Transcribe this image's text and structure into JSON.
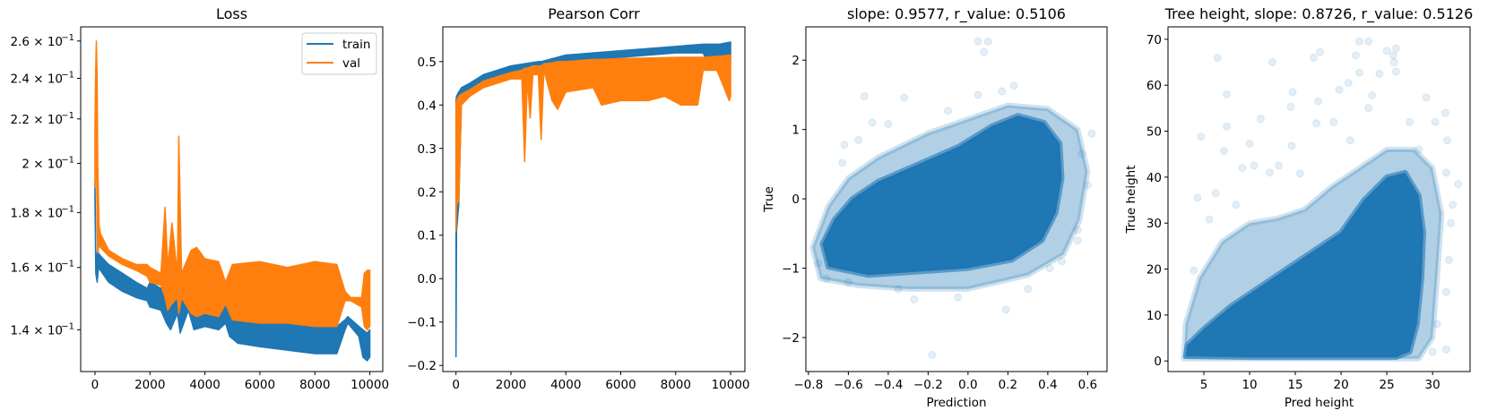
{
  "colors": {
    "train": "#1f77b4",
    "val": "#ff7f0e",
    "scatter": "#1f77b4"
  },
  "chart_data": [
    {
      "type": "line",
      "title": "Loss",
      "xlabel": "",
      "ylabel": "",
      "yscale": "log",
      "xlim": [
        -520,
        10470
      ],
      "ylim": [
        0.128,
        0.268
      ],
      "xticks": [
        0,
        2000,
        4000,
        6000,
        8000,
        10000
      ],
      "xticklabels": [
        "0",
        "2000",
        "4000",
        "6000",
        "8000",
        "10000"
      ],
      "yticks": [
        0.14,
        0.16,
        0.18,
        0.2,
        0.22,
        0.24,
        0.26
      ],
      "yticklabels": [
        [
          "1.4 × 10",
          "−1"
        ],
        [
          "1.6 × 10",
          "−1"
        ],
        [
          "1.8 × 10",
          "−1"
        ],
        [
          "2 × 10",
          "−1"
        ],
        [
          "2.2 × 10",
          "−1"
        ],
        [
          "2.4 × 10",
          "−1"
        ],
        [
          "2.6 × 10",
          "−1"
        ]
      ],
      "legend": {
        "position": "top-right",
        "entries": [
          "train",
          "val"
        ]
      },
      "series": [
        {
          "name": "train",
          "color_key": "train",
          "x": [
            0,
            30,
            80,
            100,
            130,
            200,
            500,
            1000,
            1500,
            1900,
            2000,
            2400,
            2600,
            2750,
            3000,
            3100,
            3400,
            3600,
            4000,
            4500,
            4750,
            4900,
            5200,
            6000,
            7000,
            8000,
            8800,
            9100,
            9200,
            9600,
            9750,
            9900,
            10000
          ],
          "low": [
            0.185,
            0.158,
            0.155,
            0.157,
            0.16,
            0.159,
            0.155,
            0.152,
            0.15,
            0.149,
            0.147,
            0.146,
            0.142,
            0.14,
            0.145,
            0.139,
            0.146,
            0.14,
            0.141,
            0.14,
            0.142,
            0.138,
            0.136,
            0.135,
            0.134,
            0.133,
            0.133,
            0.14,
            0.142,
            0.138,
            0.132,
            0.131,
            0.132
          ],
          "high": [
            0.193,
            0.165,
            0.165,
            0.166,
            0.165,
            0.164,
            0.161,
            0.158,
            0.155,
            0.153,
            0.155,
            0.153,
            0.155,
            0.152,
            0.153,
            0.152,
            0.152,
            0.15,
            0.15,
            0.146,
            0.15,
            0.145,
            0.143,
            0.143,
            0.142,
            0.142,
            0.141,
            0.143,
            0.144,
            0.141,
            0.14,
            0.139,
            0.14
          ]
        },
        {
          "name": "val",
          "color_key": "val",
          "x": [
            0,
            20,
            50,
            80,
            100,
            150,
            200,
            500,
            1000,
            1500,
            1900,
            2000,
            2400,
            2550,
            2650,
            2800,
            3000,
            3050,
            3150,
            3500,
            3700,
            4000,
            4500,
            4750,
            5000,
            6000,
            7000,
            8000,
            8800,
            9100,
            9300,
            9700,
            9800,
            9900,
            10000
          ],
          "low": [
            0.19,
            0.2,
            0.205,
            0.175,
            0.165,
            0.168,
            0.167,
            0.164,
            0.161,
            0.159,
            0.157,
            0.155,
            0.154,
            0.15,
            0.146,
            0.148,
            0.15,
            0.145,
            0.15,
            0.145,
            0.144,
            0.145,
            0.144,
            0.148,
            0.143,
            0.142,
            0.142,
            0.141,
            0.141,
            0.149,
            0.149,
            0.147,
            0.141,
            0.14,
            0.141
          ],
          "high": [
            0.215,
            0.24,
            0.26,
            0.24,
            0.2,
            0.175,
            0.172,
            0.166,
            0.163,
            0.161,
            0.161,
            0.16,
            0.158,
            0.182,
            0.16,
            0.176,
            0.158,
            0.212,
            0.158,
            0.166,
            0.167,
            0.163,
            0.162,
            0.155,
            0.161,
            0.162,
            0.16,
            0.162,
            0.161,
            0.152,
            0.15,
            0.15,
            0.158,
            0.159,
            0.159
          ]
        }
      ]
    },
    {
      "type": "line",
      "title": "Pearson Corr",
      "xlabel": "",
      "ylabel": "",
      "xlim": [
        -480,
        10520
      ],
      "ylim": [
        -0.214,
        0.58
      ],
      "xticks": [
        0,
        2000,
        4000,
        6000,
        8000,
        10000
      ],
      "xticklabels": [
        "0",
        "2000",
        "4000",
        "6000",
        "8000",
        "10000"
      ],
      "yticks": [
        -0.2,
        -0.1,
        0.0,
        0.1,
        0.2,
        0.3,
        0.4,
        0.5
      ],
      "yticklabels": [
        "−0.2",
        "−0.1",
        "0.0",
        "0.1",
        "0.2",
        "0.3",
        "0.4",
        "0.5"
      ],
      "series": [
        {
          "name": "train",
          "color_key": "train",
          "x": [
            0,
            20,
            100,
            200,
            500,
            1000,
            2000,
            3000,
            3100,
            4000,
            6000,
            8000,
            9000,
            9200,
            9600,
            10000
          ],
          "low": [
            -0.18,
            0.11,
            0.17,
            0.42,
            0.43,
            0.45,
            0.47,
            0.48,
            0.48,
            0.5,
            0.51,
            0.52,
            0.52,
            0.49,
            0.49,
            0.5
          ],
          "high": [
            0.41,
            0.42,
            0.43,
            0.44,
            0.45,
            0.47,
            0.49,
            0.5,
            0.5,
            0.515,
            0.525,
            0.535,
            0.54,
            0.54,
            0.54,
            0.545
          ]
        },
        {
          "name": "val",
          "color_key": "val",
          "x": [
            0,
            20,
            100,
            200,
            500,
            1000,
            2000,
            2400,
            2500,
            2600,
            2700,
            2800,
            3000,
            3100,
            3200,
            3500,
            3700,
            4000,
            5000,
            5300,
            6000,
            7000,
            7600,
            8200,
            8800,
            9000,
            9500,
            9700,
            9950,
            10000
          ],
          "low": [
            0.11,
            0.17,
            0.18,
            0.4,
            0.42,
            0.44,
            0.46,
            0.46,
            0.27,
            0.46,
            0.37,
            0.47,
            0.47,
            0.32,
            0.48,
            0.41,
            0.39,
            0.43,
            0.44,
            0.4,
            0.41,
            0.41,
            0.42,
            0.4,
            0.4,
            0.48,
            0.48,
            0.45,
            0.41,
            0.42
          ],
          "high": [
            0.4,
            0.41,
            0.42,
            0.425,
            0.435,
            0.455,
            0.475,
            0.48,
            0.485,
            0.485,
            0.487,
            0.49,
            0.49,
            0.49,
            0.495,
            0.497,
            0.5,
            0.5,
            0.505,
            0.505,
            0.507,
            0.508,
            0.509,
            0.51,
            0.51,
            0.51,
            0.512,
            0.513,
            0.515,
            0.515
          ]
        }
      ]
    },
    {
      "type": "scatter",
      "title": "slope: 0.9577, r_value: 0.5106",
      "xlabel": "Prediction",
      "ylabel": "True",
      "xlim": [
        -0.813,
        0.697
      ],
      "ylim": [
        -2.49,
        2.48
      ],
      "xticks": [
        -0.8,
        -0.6,
        -0.4,
        -0.2,
        0.0,
        0.2,
        0.4,
        0.6
      ],
      "xticklabels": [
        "−0.8",
        "−0.6",
        "−0.4",
        "−0.2",
        "0.0",
        "0.2",
        "0.4",
        "0.6"
      ],
      "yticks": [
        -2,
        -1,
        0,
        1,
        2
      ],
      "yticklabels": [
        "−2",
        "−1",
        "0",
        "1",
        "2"
      ],
      "marker_alpha": 0.12,
      "dense_region": [
        [
          -0.7,
          -0.98
        ],
        [
          -0.73,
          -0.65
        ],
        [
          -0.67,
          -0.3
        ],
        [
          -0.58,
          0.0
        ],
        [
          -0.45,
          0.25
        ],
        [
          -0.25,
          0.5
        ],
        [
          -0.05,
          0.75
        ],
        [
          0.12,
          1.05
        ],
        [
          0.25,
          1.2
        ],
        [
          0.38,
          1.1
        ],
        [
          0.46,
          0.8
        ],
        [
          0.47,
          0.3
        ],
        [
          0.44,
          -0.2
        ],
        [
          0.37,
          -0.6
        ],
        [
          0.22,
          -0.88
        ],
        [
          0.0,
          -1.0
        ],
        [
          -0.25,
          -1.05
        ],
        [
          -0.5,
          -1.1
        ]
      ],
      "halo_region": [
        [
          -0.74,
          -1.15
        ],
        [
          -0.78,
          -0.7
        ],
        [
          -0.7,
          -0.1
        ],
        [
          -0.6,
          0.3
        ],
        [
          -0.45,
          0.6
        ],
        [
          -0.2,
          0.95
        ],
        [
          0.05,
          1.2
        ],
        [
          0.2,
          1.35
        ],
        [
          0.4,
          1.3
        ],
        [
          0.55,
          1.0
        ],
        [
          0.6,
          0.4
        ],
        [
          0.56,
          -0.3
        ],
        [
          0.48,
          -0.8
        ],
        [
          0.3,
          -1.1
        ],
        [
          0.0,
          -1.3
        ],
        [
          -0.3,
          -1.3
        ],
        [
          -0.55,
          -1.25
        ]
      ],
      "points": [
        [
          0.05,
          2.27
        ],
        [
          0.1,
          2.27
        ],
        [
          0.08,
          2.12
        ],
        [
          -0.18,
          -2.25
        ],
        [
          0.19,
          -1.6
        ],
        [
          -0.75,
          -0.93
        ],
        [
          -0.62,
          0.78
        ],
        [
          -0.52,
          1.48
        ],
        [
          -0.32,
          1.46
        ],
        [
          0.62,
          0.94
        ],
        [
          0.57,
          0.65
        ],
        [
          -0.27,
          -1.45
        ],
        [
          -0.05,
          -1.42
        ],
        [
          0.23,
          1.63
        ],
        [
          0.41,
          -1.0
        ],
        [
          0.47,
          -0.9
        ],
        [
          -0.48,
          1.1
        ],
        [
          0.55,
          -0.45
        ],
        [
          -0.63,
          0.52
        ],
        [
          -0.71,
          -1.15
        ],
        [
          -0.4,
          1.08
        ],
        [
          -0.1,
          1.27
        ],
        [
          0.17,
          1.55
        ],
        [
          0.6,
          0.2
        ],
        [
          -0.6,
          -1.2
        ],
        [
          -0.35,
          -1.3
        ],
        [
          0.3,
          -1.3
        ],
        [
          0.55,
          -0.6
        ],
        [
          -0.55,
          0.85
        ],
        [
          0.05,
          1.5
        ]
      ]
    },
    {
      "type": "scatter",
      "title": "Tree height, slope: 0.8726, r_value: 0.5126",
      "xlabel": "Pred height",
      "ylabel": "True height",
      "xlim": [
        1.08,
        34.1
      ],
      "ylim": [
        -2.3,
        72.7
      ],
      "xticks": [
        5,
        10,
        15,
        20,
        25,
        30
      ],
      "xticklabels": [
        "5",
        "10",
        "15",
        "20",
        "25",
        "30"
      ],
      "yticks": [
        0,
        10,
        20,
        30,
        40,
        50,
        60,
        70
      ],
      "yticklabels": [
        "0",
        "10",
        "20",
        "30",
        "40",
        "50",
        "60",
        "70"
      ],
      "marker_alpha": 0.12,
      "dense_region": [
        [
          3.0,
          1.0
        ],
        [
          3.2,
          3.5
        ],
        [
          5,
          7
        ],
        [
          8,
          12
        ],
        [
          11,
          16
        ],
        [
          14,
          20
        ],
        [
          17,
          24
        ],
        [
          20,
          28
        ],
        [
          22.5,
          35
        ],
        [
          25,
          40
        ],
        [
          27,
          41
        ],
        [
          28.5,
          36
        ],
        [
          29,
          28
        ],
        [
          28.8,
          18
        ],
        [
          28.3,
          8
        ],
        [
          27.5,
          2
        ],
        [
          26,
          0.8
        ],
        [
          10,
          0.8
        ]
      ],
      "halo_region": [
        [
          2.8,
          0.5
        ],
        [
          3.0,
          8
        ],
        [
          4.5,
          18
        ],
        [
          7,
          26
        ],
        [
          10,
          30
        ],
        [
          13,
          31
        ],
        [
          16,
          33
        ],
        [
          19,
          38
        ],
        [
          22,
          42
        ],
        [
          25,
          46
        ],
        [
          28,
          46
        ],
        [
          30,
          42
        ],
        [
          31,
          32
        ],
        [
          30.5,
          18
        ],
        [
          30,
          5
        ],
        [
          28.5,
          0.5
        ]
      ],
      "points": [
        [
          22,
          69.5
        ],
        [
          23,
          69.5
        ],
        [
          25,
          67.5
        ],
        [
          26,
          68
        ],
        [
          25.7,
          66.5
        ],
        [
          6.5,
          66
        ],
        [
          12.5,
          65
        ],
        [
          17,
          66
        ],
        [
          17.7,
          67.2
        ],
        [
          21.6,
          66.5
        ],
        [
          22,
          62.7
        ],
        [
          25.8,
          65
        ],
        [
          26,
          63
        ],
        [
          7.5,
          58
        ],
        [
          14.7,
          58.5
        ],
        [
          19.8,
          59
        ],
        [
          20.8,
          60.5
        ],
        [
          17.5,
          56.5
        ],
        [
          14.5,
          55.3
        ],
        [
          29.3,
          57.3
        ],
        [
          11.2,
          52.7
        ],
        [
          4.7,
          48.8
        ],
        [
          7.5,
          51
        ],
        [
          10,
          47.3
        ],
        [
          17.3,
          51.7
        ],
        [
          19.2,
          52
        ],
        [
          30.3,
          52
        ],
        [
          31.4,
          54
        ],
        [
          31.6,
          48
        ],
        [
          9.2,
          42
        ],
        [
          10.5,
          42.5
        ],
        [
          12.2,
          41
        ],
        [
          6.3,
          36.5
        ],
        [
          5.6,
          30.8
        ],
        [
          3.9,
          19.7
        ],
        [
          4.3,
          35.5
        ],
        [
          31.5,
          41
        ],
        [
          32.8,
          38.5
        ],
        [
          32.2,
          34
        ],
        [
          31.8,
          22
        ],
        [
          30,
          2
        ],
        [
          31.5,
          2.5
        ],
        [
          14.6,
          46.8
        ],
        [
          24.2,
          62.5
        ],
        [
          23.4,
          57.8
        ],
        [
          13.2,
          42.5
        ],
        [
          15.5,
          40.8
        ],
        [
          8.5,
          34
        ],
        [
          7.2,
          45.7
        ],
        [
          21,
          48
        ],
        [
          23,
          55
        ],
        [
          27.5,
          52
        ],
        [
          28.5,
          46
        ],
        [
          32,
          30
        ],
        [
          31.5,
          15
        ],
        [
          30.5,
          8
        ]
      ]
    }
  ]
}
